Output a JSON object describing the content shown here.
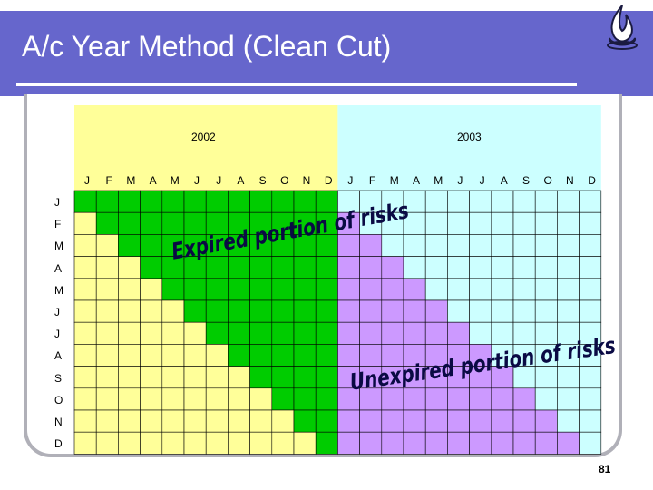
{
  "title": "A/c Year Method (Clean Cut)",
  "years": [
    "2002",
    "2003"
  ],
  "months": [
    "J",
    "F",
    "M",
    "A",
    "M",
    "J",
    "J",
    "A",
    "S",
    "O",
    "N",
    "D",
    "J",
    "F",
    "M",
    "A",
    "M",
    "J",
    "J",
    "A",
    "S",
    "O",
    "N",
    "D"
  ],
  "row_months": [
    "J",
    "F",
    "M",
    "A",
    "M",
    "J",
    "J",
    "A",
    "S",
    "O",
    "N",
    "D"
  ],
  "annotations": {
    "expired": "Expired portion of risks",
    "unexpired": "Unexpired portion of risks"
  },
  "page_number": "81",
  "colors": {
    "expired": "#00cc00",
    "pre_start_2002": "#ffff99",
    "unexpired": "#cc99ff",
    "after_2003": "#ccffff",
    "header_2002": "#ffff99",
    "header_2003": "#ccffff",
    "title_bar": "#6666cc"
  }
}
